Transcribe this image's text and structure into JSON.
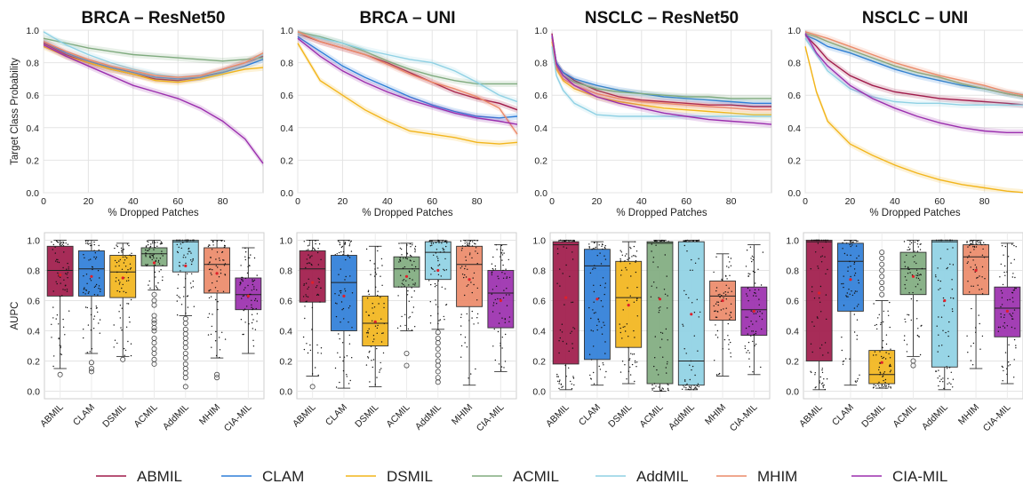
{
  "colors": {
    "ABMIL": "#a01a4a",
    "CLAM": "#2f7ed8",
    "DSMIL": "#f2b51c",
    "ACMIL": "#80ab7f",
    "AddMIL": "#8fd1e4",
    "MHIM": "#ec8a69",
    "CIA-MIL": "#9b2fae"
  },
  "legend": [
    "ABMIL",
    "CLAM",
    "DSMIL",
    "ACMIL",
    "AddMIL",
    "MHIM",
    "CIA-MIL"
  ],
  "chart_data": [
    {
      "type": "line",
      "title": "BRCA – ResNet50",
      "xlabel": "% Dropped Patches",
      "ylabel": "Target Class Probability",
      "xlim": [
        0,
        98
      ],
      "ylim": [
        0,
        1
      ],
      "xticks": [
        "0",
        "20",
        "40",
        "60",
        "80"
      ],
      "yticks": [
        "0.0",
        "0.2",
        "0.4",
        "0.6",
        "0.8",
        "1.0"
      ],
      "x": [
        0,
        10,
        20,
        30,
        40,
        50,
        60,
        70,
        80,
        90,
        98
      ],
      "series": [
        {
          "name": "ABMIL",
          "values": [
            0.92,
            0.85,
            0.8,
            0.76,
            0.73,
            0.7,
            0.69,
            0.71,
            0.75,
            0.8,
            0.84
          ]
        },
        {
          "name": "CLAM",
          "values": [
            0.93,
            0.86,
            0.81,
            0.77,
            0.74,
            0.71,
            0.7,
            0.71,
            0.74,
            0.78,
            0.82
          ]
        },
        {
          "name": "DSMIL",
          "values": [
            0.9,
            0.84,
            0.8,
            0.76,
            0.73,
            0.69,
            0.68,
            0.7,
            0.73,
            0.76,
            0.77
          ]
        },
        {
          "name": "ACMIL",
          "values": [
            0.95,
            0.92,
            0.89,
            0.87,
            0.85,
            0.84,
            0.83,
            0.82,
            0.81,
            0.82,
            0.83
          ]
        },
        {
          "name": "AddMIL",
          "values": [
            0.99,
            0.91,
            0.85,
            0.8,
            0.76,
            0.73,
            0.71,
            0.72,
            0.75,
            0.8,
            0.85
          ]
        },
        {
          "name": "MHIM",
          "values": [
            0.93,
            0.87,
            0.82,
            0.78,
            0.75,
            0.72,
            0.71,
            0.72,
            0.76,
            0.8,
            0.86
          ]
        },
        {
          "name": "CIA-MIL",
          "values": [
            0.91,
            0.84,
            0.78,
            0.72,
            0.66,
            0.62,
            0.58,
            0.52,
            0.44,
            0.33,
            0.18
          ]
        }
      ]
    },
    {
      "type": "line",
      "title": "BRCA – UNI",
      "xlabel": "% Dropped Patches",
      "ylabel": "",
      "xlim": [
        0,
        98
      ],
      "ylim": [
        0,
        1
      ],
      "xticks": [
        "0",
        "20",
        "40",
        "60",
        "80"
      ],
      "yticks": [
        "0.0",
        "0.2",
        "0.4",
        "0.6",
        "0.8",
        "1.0"
      ],
      "x": [
        0,
        10,
        20,
        30,
        40,
        50,
        60,
        70,
        80,
        90,
        98
      ],
      "series": [
        {
          "name": "ABMIL",
          "values": [
            0.98,
            0.93,
            0.89,
            0.85,
            0.8,
            0.74,
            0.68,
            0.62,
            0.58,
            0.55,
            0.51
          ]
        },
        {
          "name": "CLAM",
          "values": [
            0.96,
            0.87,
            0.78,
            0.71,
            0.65,
            0.59,
            0.54,
            0.5,
            0.47,
            0.46,
            0.47
          ]
        },
        {
          "name": "DSMIL",
          "values": [
            0.92,
            0.69,
            0.6,
            0.51,
            0.44,
            0.38,
            0.36,
            0.34,
            0.31,
            0.3,
            0.31
          ]
        },
        {
          "name": "ACMIL",
          "values": [
            0.99,
            0.96,
            0.92,
            0.87,
            0.81,
            0.76,
            0.72,
            0.69,
            0.67,
            0.67,
            0.67
          ]
        },
        {
          "name": "AddMIL",
          "values": [
            0.98,
            0.95,
            0.92,
            0.88,
            0.85,
            0.82,
            0.8,
            0.75,
            0.68,
            0.6,
            0.56
          ]
        },
        {
          "name": "MHIM",
          "values": [
            0.99,
            0.93,
            0.89,
            0.85,
            0.79,
            0.73,
            0.68,
            0.64,
            0.59,
            0.52,
            0.36
          ]
        },
        {
          "name": "CIA-MIL",
          "values": [
            0.95,
            0.84,
            0.75,
            0.68,
            0.62,
            0.57,
            0.53,
            0.49,
            0.46,
            0.44,
            0.42
          ]
        }
      ]
    },
    {
      "type": "line",
      "title": "NSCLC – ResNet50",
      "xlabel": "% Dropped Patches",
      "ylabel": "",
      "xlim": [
        0,
        98
      ],
      "ylim": [
        0,
        1
      ],
      "xticks": [
        "0",
        "20",
        "40",
        "60",
        "80"
      ],
      "yticks": [
        "0.0",
        "0.2",
        "0.4",
        "0.6",
        "0.8",
        "1.0"
      ],
      "x": [
        0,
        2,
        5,
        10,
        20,
        30,
        40,
        50,
        60,
        70,
        80,
        90,
        98
      ],
      "series": [
        {
          "name": "ABMIL",
          "values": [
            0.98,
            0.8,
            0.74,
            0.69,
            0.63,
            0.59,
            0.57,
            0.56,
            0.55,
            0.54,
            0.54,
            0.53,
            0.53
          ]
        },
        {
          "name": "CLAM",
          "values": [
            0.96,
            0.8,
            0.74,
            0.7,
            0.66,
            0.63,
            0.61,
            0.59,
            0.58,
            0.57,
            0.56,
            0.55,
            0.55
          ]
        },
        {
          "name": "DSMIL",
          "values": [
            0.93,
            0.76,
            0.69,
            0.64,
            0.59,
            0.56,
            0.54,
            0.52,
            0.51,
            0.5,
            0.49,
            0.48,
            0.48
          ]
        },
        {
          "name": "ACMIL",
          "values": [
            0.95,
            0.78,
            0.72,
            0.68,
            0.64,
            0.62,
            0.61,
            0.6,
            0.59,
            0.59,
            0.58,
            0.58,
            0.58
          ]
        },
        {
          "name": "AddMIL",
          "values": [
            0.9,
            0.72,
            0.63,
            0.55,
            0.48,
            0.47,
            0.47,
            0.47,
            0.47,
            0.47,
            0.47,
            0.47,
            0.47
          ]
        },
        {
          "name": "MHIM",
          "values": [
            0.95,
            0.77,
            0.7,
            0.66,
            0.61,
            0.58,
            0.56,
            0.55,
            0.54,
            0.53,
            0.52,
            0.51,
            0.51
          ]
        },
        {
          "name": "CIA-MIL",
          "values": [
            0.97,
            0.79,
            0.72,
            0.66,
            0.59,
            0.55,
            0.52,
            0.49,
            0.47,
            0.45,
            0.44,
            0.43,
            0.42
          ]
        }
      ]
    },
    {
      "type": "line",
      "title": "NSCLC – UNI",
      "xlabel": "% Dropped Patches",
      "ylabel": "",
      "xlim": [
        0,
        98
      ],
      "ylim": [
        0,
        1
      ],
      "xticks": [
        "0",
        "20",
        "40",
        "60",
        "80"
      ],
      "yticks": [
        "0.0",
        "0.2",
        "0.4",
        "0.6",
        "0.8",
        "1.0"
      ],
      "x": [
        0,
        5,
        10,
        20,
        30,
        40,
        50,
        60,
        70,
        80,
        90,
        98
      ],
      "series": [
        {
          "name": "ABMIL",
          "values": [
            0.97,
            0.9,
            0.82,
            0.72,
            0.66,
            0.62,
            0.6,
            0.58,
            0.57,
            0.56,
            0.55,
            0.54
          ]
        },
        {
          "name": "CLAM",
          "values": [
            0.97,
            0.94,
            0.9,
            0.86,
            0.81,
            0.76,
            0.72,
            0.69,
            0.66,
            0.64,
            0.61,
            0.59
          ]
        },
        {
          "name": "DSMIL",
          "values": [
            0.9,
            0.62,
            0.44,
            0.3,
            0.23,
            0.17,
            0.12,
            0.08,
            0.05,
            0.03,
            0.01,
            0.0
          ]
        },
        {
          "name": "ACMIL",
          "values": [
            0.98,
            0.96,
            0.93,
            0.88,
            0.83,
            0.78,
            0.74,
            0.71,
            0.67,
            0.64,
            0.61,
            0.59
          ]
        },
        {
          "name": "AddMIL",
          "values": [
            0.95,
            0.85,
            0.75,
            0.64,
            0.59,
            0.56,
            0.55,
            0.55,
            0.54,
            0.54,
            0.54,
            0.54
          ]
        },
        {
          "name": "MHIM",
          "values": [
            0.99,
            0.97,
            0.95,
            0.9,
            0.85,
            0.8,
            0.76,
            0.72,
            0.69,
            0.66,
            0.62,
            0.6
          ]
        },
        {
          "name": "CIA-MIL",
          "values": [
            0.98,
            0.86,
            0.78,
            0.66,
            0.58,
            0.52,
            0.47,
            0.43,
            0.4,
            0.38,
            0.37,
            0.37
          ]
        }
      ]
    },
    {
      "type": "box",
      "title": "",
      "xlabel": "",
      "ylabel": "AUPC",
      "ylim": [
        0,
        1
      ],
      "yticks": [
        "0.0",
        "0.2",
        "0.4",
        "0.6",
        "0.8",
        "1.0"
      ],
      "categories": [
        "ABMIL",
        "CLAM",
        "DSMIL",
        "ACMIL",
        "AddMIL",
        "MHIM",
        "CIA-MIL"
      ],
      "boxes": [
        {
          "q1": 0.63,
          "median": 0.8,
          "q3": 0.96,
          "whisker_low": 0.15,
          "whisker_high": 1.0,
          "mean": 0.77,
          "outliers": [
            0.11
          ]
        },
        {
          "q1": 0.63,
          "median": 0.81,
          "q3": 0.93,
          "whisker_low": 0.25,
          "whisker_high": 1.0,
          "mean": 0.76,
          "outliers": [
            0.13,
            0.15,
            0.19
          ]
        },
        {
          "q1": 0.62,
          "median": 0.79,
          "q3": 0.9,
          "whisker_low": 0.23,
          "whisker_high": 0.98,
          "mean": 0.75,
          "outliers": [
            0.21
          ]
        },
        {
          "q1": 0.83,
          "median": 0.91,
          "q3": 0.95,
          "whisker_low": 0.67,
          "whisker_high": 1.0,
          "mean": 0.85,
          "outliers": [
            0.64,
            0.6,
            0.57,
            0.5,
            0.47,
            0.45,
            0.42,
            0.4,
            0.35,
            0.32,
            0.28,
            0.25,
            0.21,
            0.18
          ]
        },
        {
          "q1": 0.79,
          "median": 0.99,
          "q3": 1.0,
          "whisker_low": 0.5,
          "whisker_high": 1.0,
          "mean": 0.83,
          "outliers": [
            0.48,
            0.45,
            0.41,
            0.38,
            0.35,
            0.32,
            0.29,
            0.25,
            0.22,
            0.18,
            0.15,
            0.12,
            0.09,
            0.03
          ]
        },
        {
          "q1": 0.65,
          "median": 0.84,
          "q3": 0.95,
          "whisker_low": 0.22,
          "whisker_high": 1.0,
          "mean": 0.78,
          "outliers": [
            0.11,
            0.09
          ]
        },
        {
          "q1": 0.54,
          "median": 0.64,
          "q3": 0.75,
          "whisker_low": 0.25,
          "whisker_high": 0.95,
          "mean": 0.63,
          "outliers": []
        }
      ]
    },
    {
      "type": "box",
      "title": "",
      "xlabel": "",
      "ylabel": "",
      "ylim": [
        0,
        1
      ],
      "yticks": [
        "0.0",
        "0.2",
        "0.4",
        "0.6",
        "0.8",
        "1.0"
      ],
      "categories": [
        "ABMIL",
        "CLAM",
        "DSMIL",
        "ACMIL",
        "AddMIL",
        "MHIM",
        "CIA-MIL"
      ],
      "boxes": [
        {
          "q1": 0.59,
          "median": 0.81,
          "q3": 0.93,
          "whisker_low": 0.1,
          "whisker_high": 1.0,
          "mean": 0.72,
          "outliers": [
            0.03
          ]
        },
        {
          "q1": 0.4,
          "median": 0.72,
          "q3": 0.9,
          "whisker_low": 0.02,
          "whisker_high": 1.0,
          "mean": 0.63,
          "outliers": []
        },
        {
          "q1": 0.3,
          "median": 0.45,
          "q3": 0.63,
          "whisker_low": 0.03,
          "whisker_high": 0.96,
          "mean": 0.46,
          "outliers": []
        },
        {
          "q1": 0.69,
          "median": 0.81,
          "q3": 0.89,
          "whisker_low": 0.4,
          "whisker_high": 0.98,
          "mean": 0.76,
          "outliers": [
            0.25,
            0.17
          ]
        },
        {
          "q1": 0.74,
          "median": 0.92,
          "q3": 0.99,
          "whisker_low": 0.41,
          "whisker_high": 1.0,
          "mean": 0.8,
          "outliers": [
            0.39,
            0.35,
            0.32,
            0.28,
            0.24,
            0.2,
            0.17,
            0.13,
            0.09,
            0.06
          ]
        },
        {
          "q1": 0.56,
          "median": 0.84,
          "q3": 0.96,
          "whisker_low": 0.04,
          "whisker_high": 1.0,
          "mean": 0.74,
          "outliers": []
        },
        {
          "q1": 0.42,
          "median": 0.65,
          "q3": 0.8,
          "whisker_low": 0.13,
          "whisker_high": 0.97,
          "mean": 0.6,
          "outliers": []
        }
      ]
    },
    {
      "type": "box",
      "title": "",
      "xlabel": "",
      "ylabel": "",
      "ylim": [
        0,
        1
      ],
      "yticks": [
        "0.0",
        "0.2",
        "0.4",
        "0.6",
        "0.8",
        "1.0"
      ],
      "categories": [
        "ABMIL",
        "CLAM",
        "DSMIL",
        "ACMIL",
        "AddMIL",
        "MHIM",
        "CIA-MIL"
      ],
      "boxes": [
        {
          "q1": 0.18,
          "median": 0.97,
          "q3": 0.99,
          "whisker_low": 0.01,
          "whisker_high": 1.0,
          "mean": 0.62,
          "outliers": []
        },
        {
          "q1": 0.21,
          "median": 0.83,
          "q3": 0.94,
          "whisker_low": 0.04,
          "whisker_high": 0.99,
          "mean": 0.61,
          "outliers": []
        },
        {
          "q1": 0.29,
          "median": 0.62,
          "q3": 0.86,
          "whisker_low": 0.05,
          "whisker_high": 0.99,
          "mean": 0.57,
          "outliers": []
        },
        {
          "q1": 0.05,
          "median": 0.98,
          "q3": 0.99,
          "whisker_low": 0.0,
          "whisker_high": 1.0,
          "mean": 0.61,
          "outliers": []
        },
        {
          "q1": 0.04,
          "median": 0.2,
          "q3": 0.99,
          "whisker_low": 0.01,
          "whisker_high": 1.0,
          "mean": 0.51,
          "outliers": []
        },
        {
          "q1": 0.47,
          "median": 0.63,
          "q3": 0.73,
          "whisker_low": 0.1,
          "whisker_high": 0.91,
          "mean": 0.6,
          "outliers": []
        },
        {
          "q1": 0.37,
          "median": 0.54,
          "q3": 0.69,
          "whisker_low": 0.11,
          "whisker_high": 0.97,
          "mean": 0.53,
          "outliers": []
        }
      ]
    },
    {
      "type": "box",
      "title": "",
      "xlabel": "",
      "ylabel": "",
      "ylim": [
        0,
        1
      ],
      "yticks": [
        "0.0",
        "0.2",
        "0.4",
        "0.6",
        "0.8",
        "1.0"
      ],
      "categories": [
        "ABMIL",
        "CLAM",
        "DSMIL",
        "ACMIL",
        "AddMIL",
        "MHIM",
        "CIA-MIL"
      ],
      "boxes": [
        {
          "q1": 0.2,
          "median": 0.99,
          "q3": 1.0,
          "whisker_low": 0.01,
          "whisker_high": 1.0,
          "mean": 0.65,
          "outliers": []
        },
        {
          "q1": 0.53,
          "median": 0.86,
          "q3": 0.98,
          "whisker_low": 0.04,
          "whisker_high": 1.0,
          "mean": 0.74,
          "outliers": []
        },
        {
          "q1": 0.05,
          "median": 0.11,
          "q3": 0.27,
          "whisker_low": 0.02,
          "whisker_high": 0.6,
          "mean": 0.19,
          "outliers": [
            0.64,
            0.68,
            0.72,
            0.76,
            0.8,
            0.84,
            0.88,
            0.92
          ]
        },
        {
          "q1": 0.64,
          "median": 0.81,
          "q3": 0.92,
          "whisker_low": 0.23,
          "whisker_high": 1.0,
          "mean": 0.76,
          "outliers": [
            0.2,
            0.17
          ]
        },
        {
          "q1": 0.16,
          "median": 0.99,
          "q3": 1.0,
          "whisker_low": 0.01,
          "whisker_high": 1.0,
          "mean": 0.6,
          "outliers": []
        },
        {
          "q1": 0.64,
          "median": 0.89,
          "q3": 0.97,
          "whisker_low": 0.15,
          "whisker_high": 1.0,
          "mean": 0.8,
          "outliers": []
        },
        {
          "q1": 0.36,
          "median": 0.55,
          "q3": 0.69,
          "whisker_low": 0.05,
          "whisker_high": 0.98,
          "mean": 0.53,
          "outliers": []
        }
      ]
    }
  ]
}
